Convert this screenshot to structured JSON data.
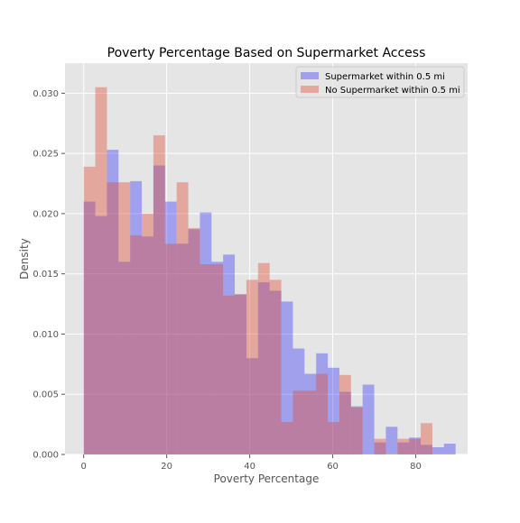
{
  "chart_data": {
    "type": "bar",
    "title": "Poverty Percentage Based on Supermarket Access",
    "xlabel": "Poverty Percentage",
    "ylabel": "Density",
    "xlim": [
      -4.5,
      92.5
    ],
    "ylim": [
      0,
      0.0325
    ],
    "x_ticks": [
      0,
      20,
      40,
      60,
      80
    ],
    "x_tick_labels": [
      "0",
      "20",
      "40",
      "60",
      "80"
    ],
    "y_ticks": [
      0,
      0.005,
      0.01,
      0.015,
      0.02,
      0.025,
      0.03
    ],
    "y_tick_labels": [
      "0.000",
      "0.005",
      "0.010",
      "0.015",
      "0.020",
      "0.025",
      "0.030"
    ],
    "grid": true,
    "legend_position": "top-right",
    "series": [
      {
        "name": "Supermarket within 0.5 mi",
        "color": "#0000ff",
        "alpha": 0.3,
        "bin_start": 0,
        "bin_width": 2.8,
        "values": [
          0.021,
          0.0198,
          0.0253,
          0.016,
          0.0227,
          0.0181,
          0.024,
          0.021,
          0.0175,
          0.0187,
          0.0201,
          0.016,
          0.0166,
          0.0133,
          0.008,
          0.0143,
          0.0136,
          0.0127,
          0.0088,
          0.0067,
          0.0084,
          0.0072,
          0.0052,
          0.004,
          0.0058,
          0.001,
          0.0023,
          0.001,
          0.0014,
          0.0008,
          0.0006,
          0.0009
        ]
      },
      {
        "name": "No Supermarket within 0.5 mi",
        "color": "#e24a33",
        "alpha": 0.4,
        "bin_start": 0,
        "bin_width": 2.8,
        "values": [
          0.0239,
          0.0305,
          0.0226,
          0.0226,
          0.0182,
          0.02,
          0.0265,
          0.0175,
          0.0226,
          0.0188,
          0.0158,
          0.0158,
          0.0132,
          0.0133,
          0.0145,
          0.0159,
          0.0145,
          0.0027,
          0.0053,
          0.0053,
          0.0067,
          0.0027,
          0.0066,
          0.0039,
          0.0,
          0.0013,
          0.0,
          0.0013,
          0.0013,
          0.0026,
          0.0,
          0.0
        ]
      }
    ]
  }
}
